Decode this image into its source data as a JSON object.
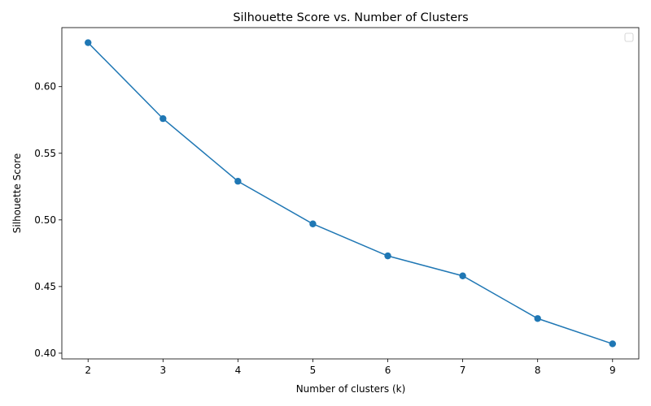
{
  "chart_data": {
    "type": "line",
    "title": "Silhouette Score vs. Number of Clusters",
    "xlabel": "Number of clusters (k)",
    "ylabel": "Silhouette Score",
    "x": [
      2,
      3,
      4,
      5,
      6,
      7,
      8,
      9
    ],
    "series": [
      {
        "values": [
          0.633,
          0.576,
          0.529,
          0.497,
          0.473,
          0.458,
          0.426,
          0.407
        ]
      }
    ],
    "xticks": [
      "2",
      "3",
      "4",
      "5",
      "6",
      "7",
      "8",
      "9"
    ],
    "yticks": [
      "0.40",
      "0.45",
      "0.50",
      "0.55",
      "0.60"
    ],
    "xlim": [
      1.65,
      9.35
    ],
    "ylim": [
      0.3957,
      0.6443
    ],
    "grid": false,
    "legend": "top-right (empty)",
    "colors": {
      "line": "#1f77b4",
      "marker": "#1f77b4",
      "axes": "#000000"
    },
    "marker": "circle"
  }
}
